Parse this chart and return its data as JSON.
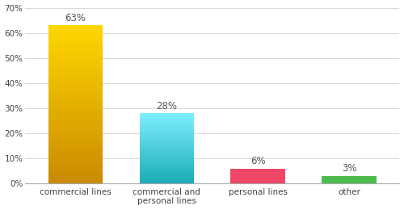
{
  "categories": [
    "commercial lines",
    "commercial and\npersonal lines",
    "personal lines",
    "other"
  ],
  "values": [
    63,
    28,
    6,
    3
  ],
  "labels": [
    "63%",
    "28%",
    "6%",
    "3%"
  ],
  "gradient_configs": [
    [
      "#FFD700",
      "#C98A00"
    ],
    [
      "#7EEEFF",
      "#1AABB8"
    ],
    [
      "#EF4766",
      "#EF4766"
    ],
    [
      "#4CBB4C",
      "#4CBB4C"
    ]
  ],
  "ylim": [
    0,
    70
  ],
  "yticks": [
    0,
    10,
    20,
    30,
    40,
    50,
    60,
    70
  ],
  "ytick_labels": [
    "0%",
    "10%",
    "20%",
    "30%",
    "40%",
    "50%",
    "60%",
    "70%"
  ],
  "background_color": "#ffffff",
  "grid_color": "#d8d8d8",
  "label_fontsize": 8.5,
  "tick_fontsize": 7.5,
  "bar_width": 0.6
}
